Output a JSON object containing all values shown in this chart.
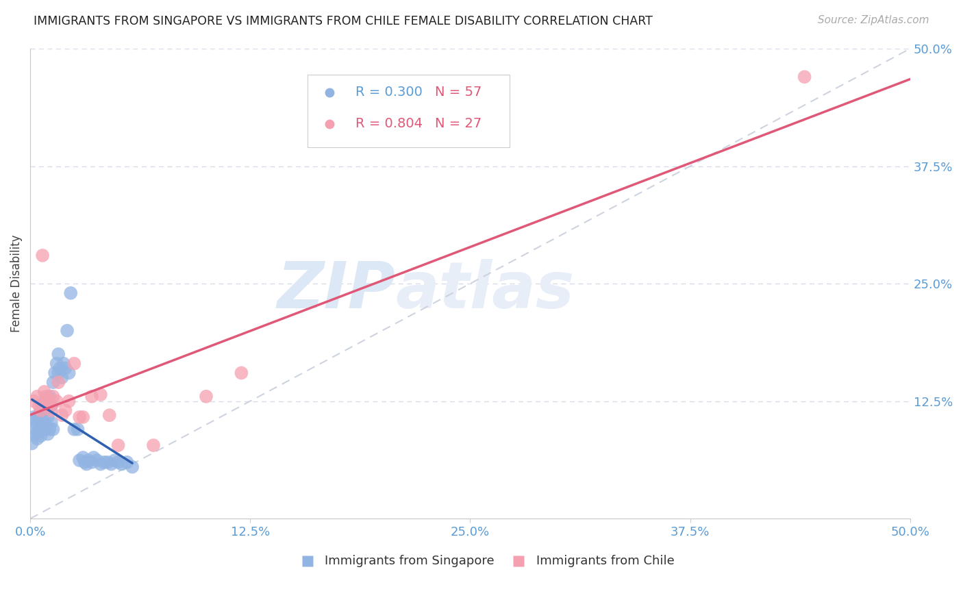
{
  "title": "IMMIGRANTS FROM SINGAPORE VS IMMIGRANTS FROM CHILE FEMALE DISABILITY CORRELATION CHART",
  "source": "Source: ZipAtlas.com",
  "ylabel": "Female Disability",
  "xlim": [
    0.0,
    0.5
  ],
  "ylim": [
    0.0,
    0.5
  ],
  "xtick_vals": [
    0.0,
    0.125,
    0.25,
    0.375,
    0.5
  ],
  "xtick_labels": [
    "0.0%",
    "12.5%",
    "25.0%",
    "37.5%",
    "50.0%"
  ],
  "ytick_vals": [
    0.125,
    0.25,
    0.375,
    0.5
  ],
  "ytick_labels": [
    "12.5%",
    "25.0%",
    "37.5%",
    "50.0%"
  ],
  "singapore_color": "#92b4e3",
  "chile_color": "#f5a0b0",
  "singapore_R": 0.3,
  "singapore_N": 57,
  "chile_R": 0.804,
  "chile_N": 27,
  "singapore_x": [
    0.001,
    0.002,
    0.002,
    0.003,
    0.003,
    0.004,
    0.004,
    0.005,
    0.005,
    0.006,
    0.006,
    0.006,
    0.007,
    0.007,
    0.008,
    0.008,
    0.009,
    0.009,
    0.01,
    0.01,
    0.01,
    0.011,
    0.011,
    0.012,
    0.012,
    0.013,
    0.013,
    0.014,
    0.015,
    0.016,
    0.016,
    0.017,
    0.018,
    0.019,
    0.02,
    0.021,
    0.022,
    0.023,
    0.025,
    0.027,
    0.028,
    0.03,
    0.031,
    0.032,
    0.033,
    0.035,
    0.036,
    0.038,
    0.04,
    0.042,
    0.044,
    0.046,
    0.048,
    0.05,
    0.052,
    0.055,
    0.058
  ],
  "singapore_y": [
    0.08,
    0.095,
    0.108,
    0.09,
    0.105,
    0.085,
    0.1,
    0.092,
    0.11,
    0.088,
    0.098,
    0.115,
    0.105,
    0.122,
    0.095,
    0.115,
    0.1,
    0.125,
    0.09,
    0.108,
    0.118,
    0.095,
    0.13,
    0.102,
    0.12,
    0.095,
    0.145,
    0.155,
    0.165,
    0.175,
    0.155,
    0.16,
    0.15,
    0.165,
    0.16,
    0.2,
    0.155,
    0.24,
    0.095,
    0.095,
    0.062,
    0.065,
    0.06,
    0.058,
    0.062,
    0.06,
    0.065,
    0.062,
    0.058,
    0.06,
    0.06,
    0.058,
    0.062,
    0.06,
    0.058,
    0.06,
    0.055
  ],
  "chile_x": [
    0.002,
    0.004,
    0.005,
    0.006,
    0.007,
    0.008,
    0.009,
    0.01,
    0.011,
    0.012,
    0.013,
    0.015,
    0.016,
    0.018,
    0.02,
    0.022,
    0.025,
    0.028,
    0.03,
    0.035,
    0.04,
    0.045,
    0.05,
    0.07,
    0.1,
    0.12,
    0.44
  ],
  "chile_y": [
    0.125,
    0.13,
    0.12,
    0.115,
    0.28,
    0.135,
    0.13,
    0.125,
    0.12,
    0.115,
    0.13,
    0.125,
    0.145,
    0.11,
    0.115,
    0.125,
    0.165,
    0.108,
    0.108,
    0.13,
    0.132,
    0.11,
    0.078,
    0.078,
    0.13,
    0.155,
    0.47
  ],
  "diagonal_color": "#c8d0dc",
  "singapore_line_color": "#3060b0",
  "chile_line_color": "#e05878",
  "watermark_zip": "ZIP",
  "watermark_atlas": "atlas",
  "watermark_color": "#dce8f5",
  "grid_color": "#d8dce8",
  "tick_color": "#5b9bd5",
  "legend_R_sg_color": "#5b9bd5",
  "legend_N_sg_color": "#e05878",
  "legend_R_ch_color": "#e05878",
  "legend_N_ch_color": "#e05878"
}
